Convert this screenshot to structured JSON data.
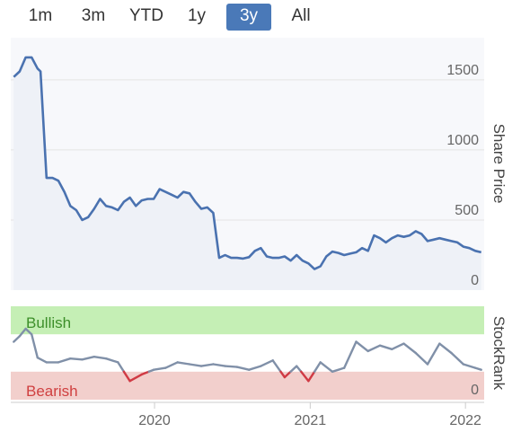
{
  "range_selector": {
    "buttons": [
      {
        "label": "1m",
        "active": false
      },
      {
        "label": "3m",
        "active": false
      },
      {
        "label": "YTD",
        "active": false
      },
      {
        "label": "1y",
        "active": false
      },
      {
        "label": "3y",
        "active": true
      },
      {
        "label": "All",
        "active": false
      }
    ],
    "active_color": "#4a79b8"
  },
  "chart_data": [
    {
      "type": "area",
      "ylabel": "Share Price",
      "ylim": [
        0,
        1800
      ],
      "yticks": [
        "0",
        "500",
        "1000",
        "1500"
      ],
      "grid": true,
      "line_color": "#4a72b0",
      "x": [
        "2019-02-04",
        "2019-02-18",
        "2019-03-04",
        "2019-03-18",
        "2019-04-01",
        "2019-04-08",
        "2019-04-22",
        "2019-05-06",
        "2019-05-20",
        "2019-06-03",
        "2019-06-17",
        "2019-07-01",
        "2019-07-15",
        "2019-07-29",
        "2019-08-12",
        "2019-08-26",
        "2019-09-09",
        "2019-09-23",
        "2019-10-07",
        "2019-10-21",
        "2019-11-04",
        "2019-11-18",
        "2019-12-02",
        "2019-12-16",
        "2019-12-30",
        "2020-01-13",
        "2020-01-27",
        "2020-02-10",
        "2020-02-24",
        "2020-03-09",
        "2020-03-23",
        "2020-04-06",
        "2020-04-20",
        "2020-05-04",
        "2020-05-18",
        "2020-06-01",
        "2020-06-15",
        "2020-06-29",
        "2020-07-13",
        "2020-07-27",
        "2020-08-10",
        "2020-08-24",
        "2020-09-07",
        "2020-09-21",
        "2020-10-05",
        "2020-10-19",
        "2020-11-02",
        "2020-11-16",
        "2020-11-30",
        "2020-12-14",
        "2020-12-28",
        "2021-01-11",
        "2021-01-25",
        "2021-02-08",
        "2021-02-22",
        "2021-03-08",
        "2021-03-22",
        "2021-04-05",
        "2021-04-19",
        "2021-05-03",
        "2021-05-17",
        "2021-05-31",
        "2021-06-14",
        "2021-06-28",
        "2021-07-12",
        "2021-07-26",
        "2021-08-09",
        "2021-08-23",
        "2021-09-06",
        "2021-09-20",
        "2021-10-04",
        "2021-10-18",
        "2021-11-01",
        "2021-11-15",
        "2021-11-29",
        "2021-12-13",
        "2021-12-27",
        "2022-01-10",
        "2022-01-24",
        "2022-02-07"
      ],
      "values": [
        1520,
        1560,
        1660,
        1660,
        1580,
        1560,
        800,
        800,
        780,
        700,
        600,
        570,
        500,
        520,
        580,
        650,
        600,
        590,
        570,
        630,
        660,
        600,
        640,
        650,
        650,
        720,
        700,
        680,
        660,
        700,
        690,
        630,
        580,
        590,
        550,
        230,
        250,
        230,
        230,
        225,
        235,
        280,
        300,
        240,
        230,
        230,
        240,
        210,
        250,
        210,
        190,
        150,
        170,
        240,
        275,
        265,
        250,
        260,
        270,
        300,
        280,
        390,
        370,
        340,
        370,
        390,
        380,
        390,
        420,
        400,
        350,
        360,
        370,
        360,
        350,
        340,
        310,
        300,
        280,
        270
      ]
    },
    {
      "type": "line",
      "ylabel": "StockRank",
      "ylim": [
        0,
        100
      ],
      "yticks": [
        "0"
      ],
      "bands": [
        {
          "label": "Bullish",
          "range": [
            70,
            100
          ],
          "color": "#c5efb5",
          "text_color": "#3d8f2a"
        },
        {
          "label": "Bearish",
          "range": [
            0,
            30
          ],
          "color": "#f2cfcc",
          "text_color": "#d04040"
        }
      ],
      "line_color": "#8090a8",
      "bearish_color": "#d03a44",
      "x": [
        "2019-02-04",
        "2019-02-18",
        "2019-03-04",
        "2019-03-18",
        "2019-04-01",
        "2019-04-22",
        "2019-05-20",
        "2019-06-17",
        "2019-07-15",
        "2019-08-12",
        "2019-09-09",
        "2019-10-07",
        "2019-11-04",
        "2019-12-02",
        "2019-12-30",
        "2020-01-27",
        "2020-02-24",
        "2020-03-23",
        "2020-04-20",
        "2020-05-18",
        "2020-06-15",
        "2020-07-13",
        "2020-08-10",
        "2020-09-07",
        "2020-10-05",
        "2020-11-02",
        "2020-11-30",
        "2020-12-28",
        "2021-01-25",
        "2021-02-22",
        "2021-03-22",
        "2021-04-19",
        "2021-05-17",
        "2021-06-14",
        "2021-07-12",
        "2021-08-09",
        "2021-09-06",
        "2021-10-04",
        "2021-11-01",
        "2021-11-29",
        "2021-12-27",
        "2022-01-24",
        "2022-02-07"
      ],
      "values": [
        62,
        68,
        76,
        70,
        45,
        40,
        40,
        44,
        43,
        46,
        44,
        40,
        20,
        27,
        32,
        34,
        40,
        38,
        36,
        38,
        36,
        35,
        32,
        36,
        42,
        24,
        36,
        20,
        40,
        30,
        34,
        62,
        52,
        58,
        54,
        60,
        50,
        38,
        60,
        50,
        38,
        34,
        32
      ]
    }
  ],
  "x_axis": {
    "ticks": [
      {
        "label": "2020",
        "date": "2020-01-01"
      },
      {
        "label": "2021",
        "date": "2021-01-01"
      },
      {
        "label": "2022",
        "date": "2022-01-01"
      }
    ]
  }
}
